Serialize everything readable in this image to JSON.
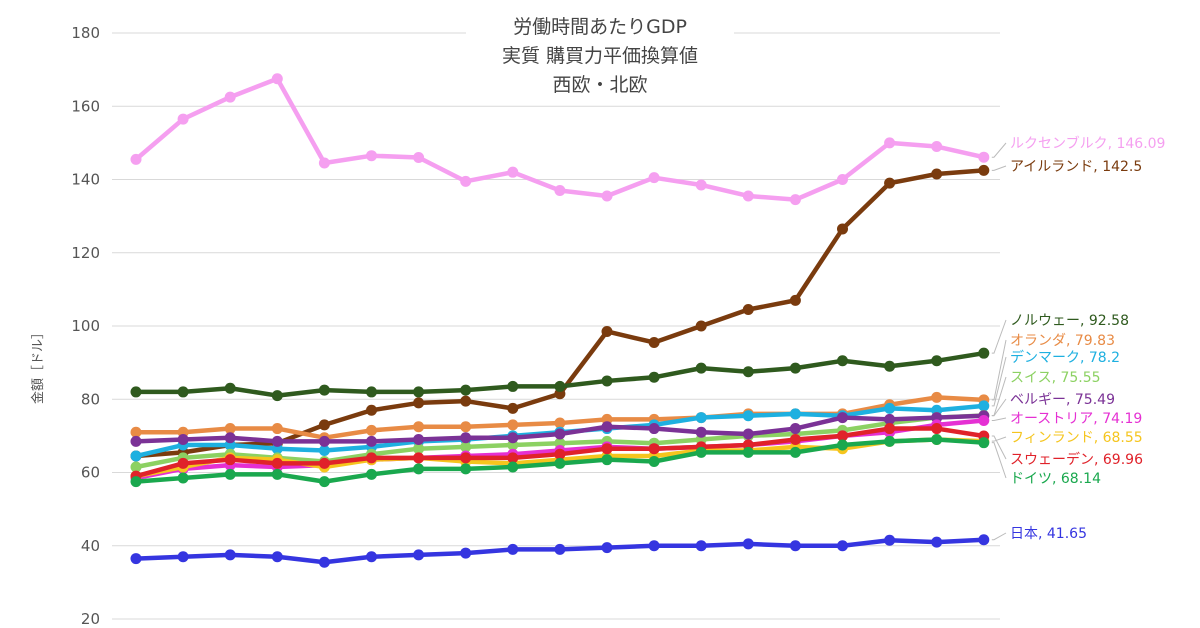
{
  "chart_data": {
    "type": "line",
    "title_lines": [
      "労働時間あたりGDP",
      "実質 購買力平価換算値",
      "西欧・北欧"
    ],
    "ylabel": "金額［ドル］",
    "ylim": [
      20,
      180
    ],
    "yticks": [
      20,
      40,
      60,
      80,
      100,
      120,
      140,
      160,
      180
    ],
    "grid": true,
    "series": [
      {
        "name": "ルクセンブルク",
        "label": "ルクセンブルク, 146.09",
        "color": "#f59ff0",
        "values": [
          145.5,
          156.5,
          162.5,
          167.5,
          144.5,
          146.5,
          146,
          139.5,
          142,
          137,
          135.5,
          140.5,
          138.5,
          135.5,
          134.5,
          140,
          150,
          149,
          146.09
        ]
      },
      {
        "name": "アイルランド",
        "label": "アイルランド, 142.5",
        "color": "#7a3b0e",
        "values": [
          64.5,
          65.5,
          67.5,
          68,
          73,
          77,
          79,
          79.5,
          77.5,
          81.5,
          98.5,
          95.5,
          100,
          104.5,
          107,
          126.5,
          139,
          141.5,
          142.5
        ]
      },
      {
        "name": "ノルウェー",
        "label": "ノルウェー, 92.58",
        "color": "#2f5a1e",
        "values": [
          82,
          82,
          83,
          81,
          82.5,
          82,
          82,
          82.5,
          83.5,
          83.5,
          85,
          86,
          88.5,
          87.5,
          88.5,
          90.5,
          89,
          90.5,
          92.58
        ]
      },
      {
        "name": "オランダ",
        "label": "オランダ, 79.83",
        "color": "#e88b45",
        "values": [
          71,
          71,
          72,
          72,
          69.5,
          71.5,
          72.5,
          72.5,
          73,
          73.5,
          74.5,
          74.5,
          75,
          76,
          76,
          76,
          78.5,
          80.5,
          79.83
        ]
      },
      {
        "name": "デンマーク",
        "label": "デンマーク, 78.2",
        "color": "#1eb0e0",
        "values": [
          64.5,
          67.5,
          67.5,
          66.5,
          66,
          67,
          68.5,
          69,
          70,
          71,
          72,
          73,
          75,
          75.5,
          76,
          75.5,
          77.5,
          77,
          78.2
        ]
      },
      {
        "name": "スイス",
        "label": "スイス, 75.55",
        "color": "#8cd162",
        "values": [
          61.5,
          64,
          65,
          64,
          63,
          65,
          66.5,
          67,
          67.5,
          68,
          68.5,
          68,
          69,
          70,
          70.5,
          71.5,
          73.5,
          75,
          75.55
        ]
      },
      {
        "name": "ベルギー",
        "label": "ベルギー, 75.49",
        "color": "#7b3296",
        "values": [
          68.5,
          69,
          69.5,
          68.5,
          68.5,
          68.5,
          69,
          69.5,
          69.5,
          70.5,
          72.5,
          72,
          71,
          70.5,
          72,
          75,
          74.5,
          75,
          75.49
        ]
      },
      {
        "name": "オーストリア",
        "label": "オーストリア, 74.19",
        "color": "#e530d3",
        "values": [
          58.5,
          61,
          62,
          61.5,
          62,
          63.5,
          64,
          64.5,
          65,
          66,
          67,
          66.5,
          67,
          67.5,
          68.5,
          70,
          71,
          73,
          74.19
        ]
      },
      {
        "name": "フィンランド",
        "label": "フィンランド, 68.55",
        "color": "#f5c51e",
        "values": [
          59,
          61.5,
          64,
          63.5,
          61.5,
          63.5,
          64,
          63,
          62.5,
          63.5,
          64.5,
          64.5,
          66,
          66,
          67,
          66.5,
          68.5,
          69,
          68.55
        ]
      },
      {
        "name": "スウェーデン",
        "label": "スウェーデン, 69.96",
        "color": "#e0222a",
        "values": [
          59,
          62.5,
          63.5,
          62.5,
          62.5,
          64,
          64,
          64,
          64,
          65,
          66.5,
          66.5,
          67,
          67.5,
          69,
          70,
          72,
          72,
          69.96
        ]
      },
      {
        "name": "ドイツ",
        "label": "ドイツ, 68.14",
        "color": "#1aa84e",
        "values": [
          57.5,
          58.5,
          59.5,
          59.5,
          57.5,
          59.5,
          61,
          61,
          61.5,
          62.5,
          63.5,
          63,
          65.5,
          65.5,
          65.5,
          67.5,
          68.5,
          69,
          68.14
        ]
      },
      {
        "name": "日本",
        "label": "日本, 41.65",
        "color": "#3535e0",
        "values": [
          36.5,
          37,
          37.5,
          37,
          35.5,
          37,
          37.5,
          38,
          39,
          39,
          39.5,
          40,
          40,
          40.5,
          40,
          40,
          41.5,
          41,
          41.65
        ]
      }
    ]
  }
}
